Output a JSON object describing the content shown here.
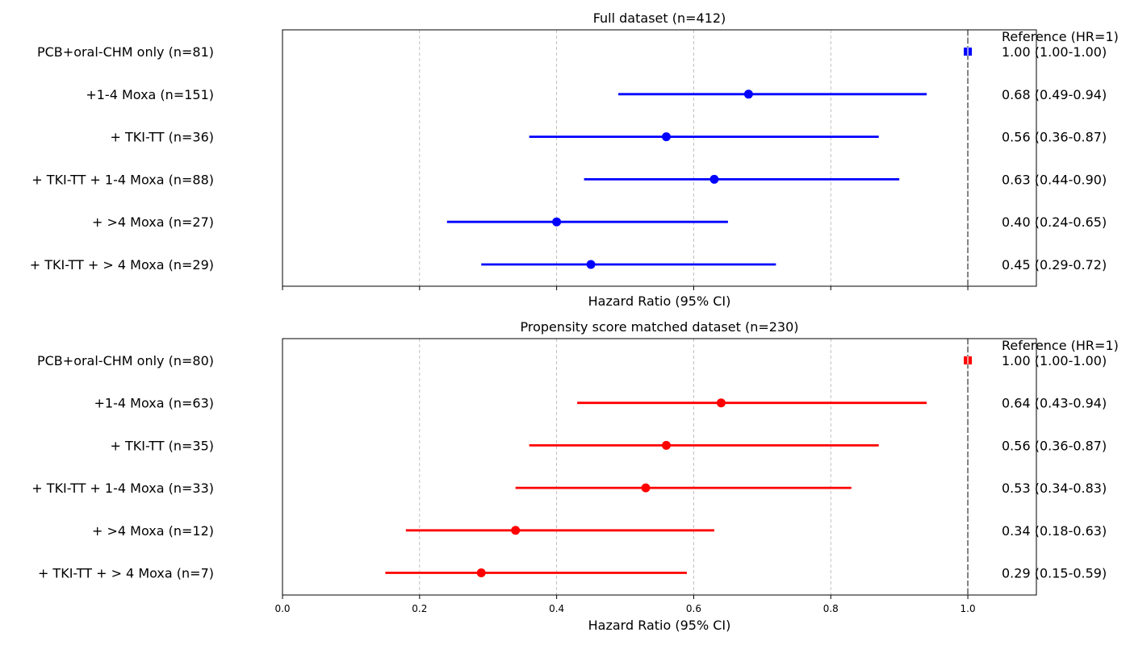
{
  "chart_data": [
    {
      "type": "forest",
      "title": "Full dataset (n=412)",
      "xlabel": "Hazard Ratio (95% CI)",
      "xlim": [
        0.0,
        1.1
      ],
      "xticks": [
        "0.0",
        "0.2",
        "0.4",
        "0.6",
        "0.8",
        "1.0"
      ],
      "show_tick_labels": false,
      "grid": "vertical dashed",
      "reference_line": 1.0,
      "reference_label": "Reference (HR=1)",
      "color": "#0000ff",
      "rows": [
        {
          "label": "PCB+oral-CHM only (n=81)",
          "hr": 1.0,
          "lo": 1.0,
          "hi": 1.0,
          "text": "1.00 (1.00-1.00)",
          "reference": true
        },
        {
          "label": "+1-4 Moxa (n=151)",
          "hr": 0.68,
          "lo": 0.49,
          "hi": 0.94,
          "text": "0.68 (0.49-0.94)"
        },
        {
          "label": "+ TKI-TT (n=36)",
          "hr": 0.56,
          "lo": 0.36,
          "hi": 0.87,
          "text": "0.56 (0.36-0.87)"
        },
        {
          "label": "+ TKI-TT + 1-4 Moxa (n=88)",
          "hr": 0.63,
          "lo": 0.44,
          "hi": 0.9,
          "text": "0.63 (0.44-0.90)"
        },
        {
          "label": "+ >4 Moxa (n=27)",
          "hr": 0.4,
          "lo": 0.24,
          "hi": 0.65,
          "text": "0.40 (0.24-0.65)"
        },
        {
          "label": "+ TKI-TT + > 4 Moxa (n=29)",
          "hr": 0.45,
          "lo": 0.29,
          "hi": 0.72,
          "text": "0.45 (0.29-0.72)"
        }
      ]
    },
    {
      "type": "forest",
      "title": "Propensity score matched dataset (n=230)",
      "xlabel": "Hazard Ratio (95% CI)",
      "xlim": [
        0.0,
        1.1
      ],
      "xticks": [
        "0.0",
        "0.2",
        "0.4",
        "0.6",
        "0.8",
        "1.0"
      ],
      "show_tick_labels": true,
      "grid": "vertical dashed",
      "reference_line": 1.0,
      "reference_label": "Reference (HR=1)",
      "color": "#ff0000",
      "rows": [
        {
          "label": "PCB+oral-CHM only (n=80)",
          "hr": 1.0,
          "lo": 1.0,
          "hi": 1.0,
          "text": "1.00 (1.00-1.00)",
          "reference": true
        },
        {
          "label": "+1-4 Moxa (n=63)",
          "hr": 0.64,
          "lo": 0.43,
          "hi": 0.94,
          "text": "0.64 (0.43-0.94)"
        },
        {
          "label": "+ TKI-TT (n=35)",
          "hr": 0.56,
          "lo": 0.36,
          "hi": 0.87,
          "text": "0.56 (0.36-0.87)"
        },
        {
          "label": "+ TKI-TT + 1-4 Moxa (n=33)",
          "hr": 0.53,
          "lo": 0.34,
          "hi": 0.83,
          "text": "0.53 (0.34-0.83)"
        },
        {
          "label": "+ >4 Moxa (n=12)",
          "hr": 0.34,
          "lo": 0.18,
          "hi": 0.63,
          "text": "0.34 (0.18-0.63)"
        },
        {
          "label": "+ TKI-TT + > 4 Moxa (n=7)",
          "hr": 0.29,
          "lo": 0.15,
          "hi": 0.59,
          "text": "0.29 (0.15-0.59)"
        }
      ]
    }
  ]
}
